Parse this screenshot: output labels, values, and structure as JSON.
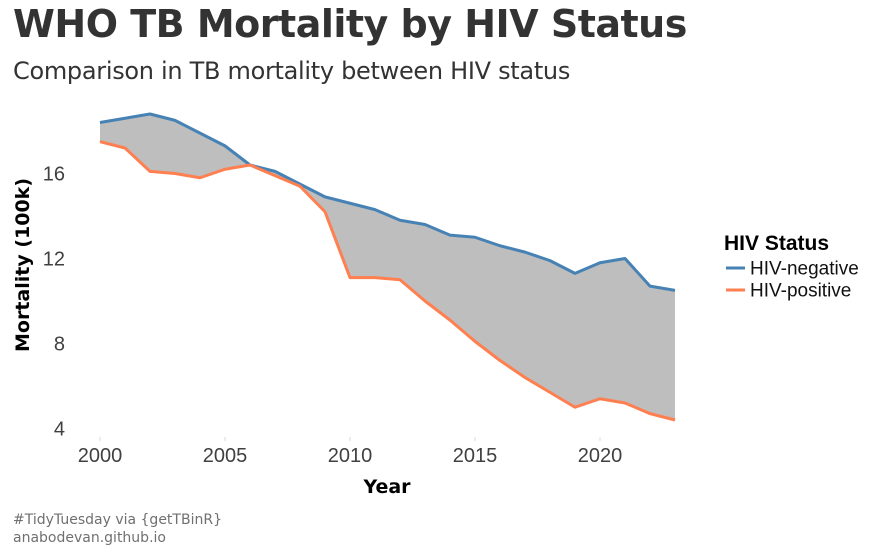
{
  "title": "WHO TB Mortality by HIV Status",
  "subtitle": "Comparison in TB mortality between HIV status",
  "caption": {
    "line1": "#TidyTuesday via {getTBinR}",
    "line2": "anabodevan.github.io"
  },
  "chart_data": {
    "type": "area",
    "title": "WHO TB Mortality by HIV Status",
    "subtitle": "Comparison in TB mortality between HIV status",
    "xlabel": "Year",
    "ylabel": "Mortality (100k)",
    "xlim": [
      2000,
      2023
    ],
    "ylim": [
      4,
      19
    ],
    "x_ticks": [
      2000,
      2005,
      2010,
      2015,
      2020
    ],
    "x_tick_labels": [
      "2000",
      "2005",
      "2010",
      "2015",
      "2020"
    ],
    "y_ticks": [
      4,
      8,
      12,
      16
    ],
    "y_tick_labels": [
      "4",
      "8",
      "12",
      "16"
    ],
    "grid": false,
    "ribbon": {
      "between": [
        "HIV-negative",
        "HIV-positive"
      ],
      "color": "#bebebe"
    },
    "legend": {
      "title": "HIV Status",
      "position": "right"
    },
    "x": [
      2000,
      2001,
      2002,
      2003,
      2004,
      2005,
      2006,
      2007,
      2008,
      2009,
      2010,
      2011,
      2012,
      2013,
      2014,
      2015,
      2016,
      2017,
      2018,
      2019,
      2020,
      2021,
      2022,
      2023
    ],
    "series": [
      {
        "name": "HIV-negative",
        "color": "#4682b4",
        "values": [
          18.4,
          18.6,
          18.8,
          18.5,
          17.9,
          17.3,
          16.4,
          16.1,
          15.5,
          14.9,
          14.6,
          14.3,
          13.8,
          13.6,
          13.1,
          13.0,
          12.6,
          12.3,
          11.9,
          11.3,
          11.8,
          12.0,
          10.7,
          10.5
        ]
      },
      {
        "name": "HIV-positive",
        "color": "#ff7f50",
        "values": [
          17.5,
          17.2,
          16.1,
          16.0,
          15.8,
          16.2,
          16.4,
          15.9,
          15.4,
          14.2,
          11.1,
          11.1,
          11.0,
          10.0,
          9.1,
          8.1,
          7.2,
          6.4,
          5.7,
          5.0,
          5.4,
          5.2,
          4.7,
          4.4
        ]
      }
    ]
  }
}
